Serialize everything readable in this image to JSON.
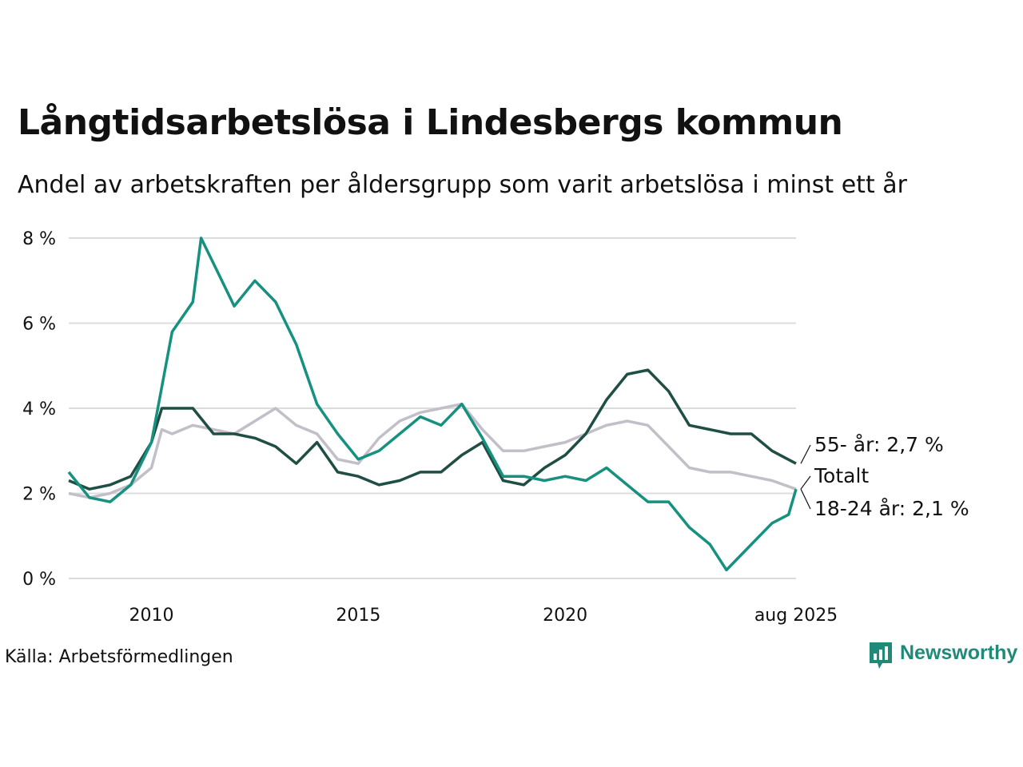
{
  "title": "Långtidsarbetslösa i Lindesbergs kommun",
  "subtitle": "Andel av arbetskraften per åldersgrupp som varit arbetslösa i minst ett år",
  "source": "Källa: Arbetsförmedlingen",
  "brand": {
    "name": "Newsworthy",
    "icon": "newsworthy-logo-icon",
    "color": "#1f8a78"
  },
  "chart_data": {
    "type": "line",
    "x_range": [
      2008.0,
      2025.58
    ],
    "ylim": [
      0,
      8
    ],
    "ytick_labels": [
      "0 %",
      "2 %",
      "4 %",
      "6 %",
      "8 %"
    ],
    "ytick_values": [
      0,
      2,
      4,
      6,
      8
    ],
    "xtick_labels": [
      "2010",
      "2015",
      "2020",
      "aug 2025"
    ],
    "xtick_values": [
      2010.0,
      2015.0,
      2020.0,
      2025.58
    ],
    "grid": true,
    "series": [
      {
        "name": "Totalt",
        "label": "Totalt",
        "color": "#c2bfc9",
        "points": [
          [
            2008.0,
            2.0
          ],
          [
            2008.5,
            1.9
          ],
          [
            2009.0,
            2.0
          ],
          [
            2009.5,
            2.2
          ],
          [
            2010.0,
            2.6
          ],
          [
            2010.25,
            3.5
          ],
          [
            2010.5,
            3.4
          ],
          [
            2011.0,
            3.6
          ],
          [
            2011.5,
            3.5
          ],
          [
            2012.0,
            3.4
          ],
          [
            2012.5,
            3.7
          ],
          [
            2013.0,
            4.0
          ],
          [
            2013.5,
            3.6
          ],
          [
            2014.0,
            3.4
          ],
          [
            2014.5,
            2.8
          ],
          [
            2015.0,
            2.7
          ],
          [
            2015.5,
            3.3
          ],
          [
            2016.0,
            3.7
          ],
          [
            2016.5,
            3.9
          ],
          [
            2017.0,
            4.0
          ],
          [
            2017.5,
            4.1
          ],
          [
            2018.0,
            3.5
          ],
          [
            2018.5,
            3.0
          ],
          [
            2019.0,
            3.0
          ],
          [
            2019.5,
            3.1
          ],
          [
            2020.0,
            3.2
          ],
          [
            2020.5,
            3.4
          ],
          [
            2021.0,
            3.6
          ],
          [
            2021.5,
            3.7
          ],
          [
            2022.0,
            3.6
          ],
          [
            2022.5,
            3.1
          ],
          [
            2023.0,
            2.6
          ],
          [
            2023.5,
            2.5
          ],
          [
            2024.0,
            2.5
          ],
          [
            2024.5,
            2.4
          ],
          [
            2025.0,
            2.3
          ],
          [
            2025.58,
            2.1
          ]
        ]
      },
      {
        "name": "55- år",
        "label": "55- år: 2,7 %",
        "color": "#1f4e44",
        "points": [
          [
            2008.0,
            2.3
          ],
          [
            2008.5,
            2.1
          ],
          [
            2009.0,
            2.2
          ],
          [
            2009.5,
            2.4
          ],
          [
            2010.0,
            3.2
          ],
          [
            2010.25,
            4.0
          ],
          [
            2011.0,
            4.0
          ],
          [
            2011.5,
            3.4
          ],
          [
            2012.0,
            3.4
          ],
          [
            2012.5,
            3.3
          ],
          [
            2013.0,
            3.1
          ],
          [
            2013.5,
            2.7
          ],
          [
            2014.0,
            3.2
          ],
          [
            2014.5,
            2.5
          ],
          [
            2015.0,
            2.4
          ],
          [
            2015.5,
            2.2
          ],
          [
            2016.0,
            2.3
          ],
          [
            2016.5,
            2.5
          ],
          [
            2017.0,
            2.5
          ],
          [
            2017.5,
            2.9
          ],
          [
            2018.0,
            3.2
          ],
          [
            2018.5,
            2.3
          ],
          [
            2019.0,
            2.2
          ],
          [
            2019.5,
            2.6
          ],
          [
            2020.0,
            2.9
          ],
          [
            2020.5,
            3.4
          ],
          [
            2021.0,
            4.2
          ],
          [
            2021.5,
            4.8
          ],
          [
            2022.0,
            4.9
          ],
          [
            2022.5,
            4.4
          ],
          [
            2023.0,
            3.6
          ],
          [
            2023.5,
            3.5
          ],
          [
            2024.0,
            3.4
          ],
          [
            2024.5,
            3.4
          ],
          [
            2025.0,
            3.0
          ],
          [
            2025.58,
            2.7
          ]
        ]
      },
      {
        "name": "18-24 år",
        "label": "18-24 år: 2,1 %",
        "color": "#17917f",
        "points": [
          [
            2008.0,
            2.5
          ],
          [
            2008.5,
            1.9
          ],
          [
            2009.0,
            1.8
          ],
          [
            2009.5,
            2.2
          ],
          [
            2010.0,
            3.2
          ],
          [
            2010.5,
            5.8
          ],
          [
            2011.0,
            6.5
          ],
          [
            2011.2,
            8.0
          ],
          [
            2011.5,
            7.4
          ],
          [
            2012.0,
            6.4
          ],
          [
            2012.5,
            7.0
          ],
          [
            2013.0,
            6.5
          ],
          [
            2013.5,
            5.5
          ],
          [
            2014.0,
            4.1
          ],
          [
            2014.5,
            3.4
          ],
          [
            2015.0,
            2.8
          ],
          [
            2015.5,
            3.0
          ],
          [
            2016.0,
            3.4
          ],
          [
            2016.5,
            3.8
          ],
          [
            2017.0,
            3.6
          ],
          [
            2017.5,
            4.1
          ],
          [
            2018.0,
            3.3
          ],
          [
            2018.5,
            2.4
          ],
          [
            2019.0,
            2.4
          ],
          [
            2019.5,
            2.3
          ],
          [
            2020.0,
            2.4
          ],
          [
            2020.5,
            2.3
          ],
          [
            2021.0,
            2.6
          ],
          [
            2021.5,
            2.2
          ],
          [
            2022.0,
            1.8
          ],
          [
            2022.5,
            1.8
          ],
          [
            2023.0,
            1.2
          ],
          [
            2023.5,
            0.8
          ],
          [
            2023.9,
            0.2
          ],
          [
            2024.5,
            0.8
          ],
          [
            2025.0,
            1.3
          ],
          [
            2025.4,
            1.5
          ],
          [
            2025.58,
            2.1
          ]
        ]
      }
    ]
  }
}
